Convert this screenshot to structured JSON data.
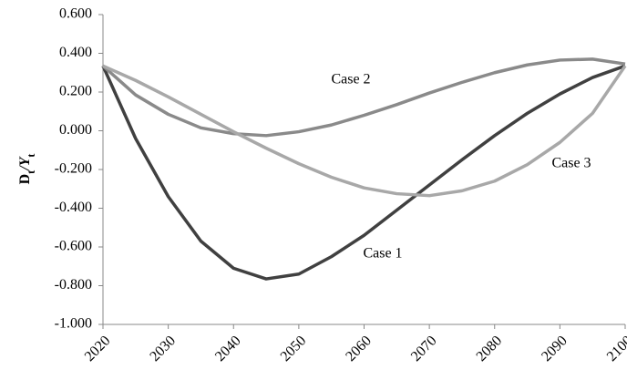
{
  "chart_data": {
    "type": "line",
    "y_label": [
      "D",
      "t",
      "/Y",
      "t"
    ],
    "x": [
      2020,
      2025,
      2030,
      2035,
      2040,
      2045,
      2050,
      2055,
      2060,
      2065,
      2070,
      2075,
      2080,
      2085,
      2090,
      2095,
      2100
    ],
    "series": [
      {
        "name": "Case 1",
        "color": "#404040",
        "values": [
          0.335,
          -0.04,
          -0.34,
          -0.57,
          -0.71,
          -0.765,
          -0.74,
          -0.65,
          -0.54,
          -0.41,
          -0.28,
          -0.15,
          -0.025,
          0.09,
          0.19,
          0.275,
          0.335
        ]
      },
      {
        "name": "Case 2",
        "color": "#8a8a8a",
        "values": [
          0.335,
          0.185,
          0.085,
          0.015,
          -0.015,
          -0.025,
          -0.005,
          0.03,
          0.08,
          0.135,
          0.195,
          0.25,
          0.3,
          0.34,
          0.365,
          0.37,
          0.345
        ]
      },
      {
        "name": "Case 3",
        "color": "#a8a8a8",
        "values": [
          0.335,
          0.26,
          0.175,
          0.085,
          -0.005,
          -0.09,
          -0.17,
          -0.24,
          -0.295,
          -0.325,
          -0.335,
          -0.31,
          -0.26,
          -0.175,
          -0.06,
          0.09,
          0.335
        ]
      }
    ],
    "xlim": [
      2020,
      2100
    ],
    "xticks": [
      2020,
      2030,
      2040,
      2050,
      2060,
      2070,
      2080,
      2090,
      2100
    ],
    "ylim": [
      -1,
      0.6
    ],
    "yticks": [
      {
        "value": -1,
        "label": "-1.000"
      },
      {
        "value": -0.8,
        "label": "-0.800"
      },
      {
        "value": -0.6,
        "label": "-0.600"
      },
      {
        "value": -0.4,
        "label": "-0.400"
      },
      {
        "value": -0.2,
        "label": "-0.200"
      },
      {
        "value": 0,
        "label": "0.000"
      },
      {
        "value": 0.2,
        "label": "0.200"
      },
      {
        "value": 0.4,
        "label": "0.400"
      },
      {
        "value": 0.6,
        "label": "0.600"
      }
    ],
    "grid": false
  }
}
